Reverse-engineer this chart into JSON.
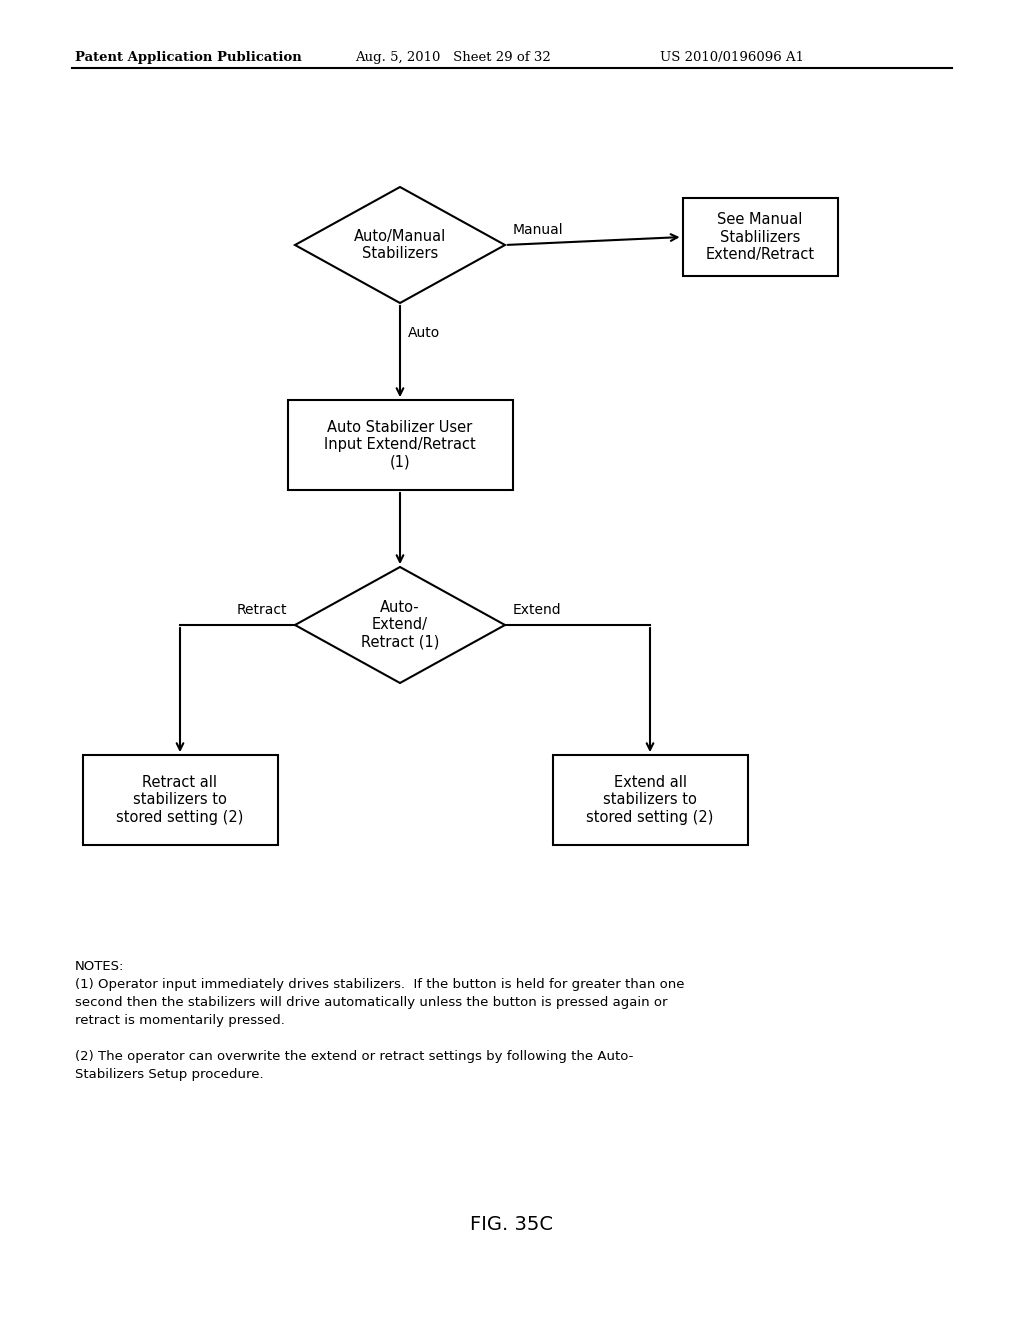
{
  "bg_color": "#ffffff",
  "header_left": "Patent Application Publication",
  "header_mid": "Aug. 5, 2010   Sheet 29 of 32",
  "header_right": "US 2010/0196096 A1",
  "fig_label": "FIG. 35C",
  "notes_title": "NOTES:",
  "note1_line1": "(1) Operator input immediately drives stabilizers.  If the button is held for greater than one",
  "note1_line2": "second then the stabilizers will drive automatically unless the button is pressed again or",
  "note1_line3": "retract is momentarily pressed.",
  "note2_line1": "(2) The operator can overwrite the extend or retract settings by following the Auto-",
  "note2_line2": "Stabilizers Setup procedure.",
  "diamond1_text": "Auto/Manual\nStabilizers",
  "manual_box_text": "See Manual\nStablilizers\nExtend/Retract",
  "rect1_text": "Auto Stabilizer User\nInput Extend/Retract\n(1)",
  "diamond2_text": "Auto-\nExtend/\nRetract (1)",
  "rect_retract_text": "Retract all\nstabilizers to\nstored setting (2)",
  "rect_extend_text": "Extend all\nstabilizers to\nstored setting (2)",
  "line_color": "#000000",
  "text_color": "#000000",
  "font_size_flow": 10.5,
  "font_size_header": 9.5,
  "font_size_notes": 9.5,
  "font_size_fig": 14
}
